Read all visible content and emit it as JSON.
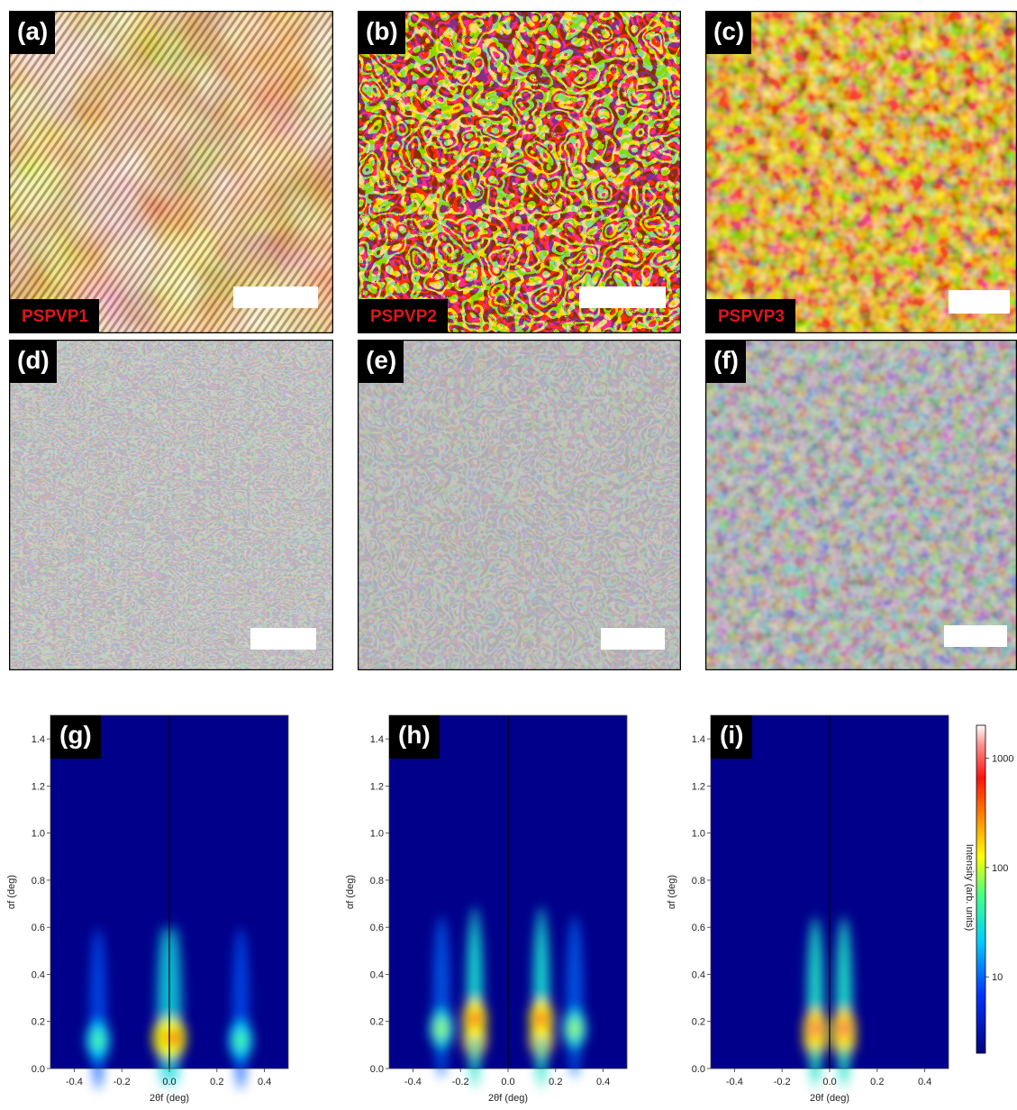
{
  "panels": {
    "a": {
      "label": "(a)",
      "sample": "PSPVP1"
    },
    "b": {
      "label": "(b)",
      "sample": "PSPVP2"
    },
    "c": {
      "label": "(c)",
      "sample": "PSPVP3"
    },
    "d": {
      "label": "(d)"
    },
    "e": {
      "label": "(e)"
    },
    "f": {
      "label": "(f)"
    },
    "g": {
      "label": "(g)"
    },
    "h": {
      "label": "(h)"
    },
    "i": {
      "label": "(i)"
    }
  },
  "colors": {
    "afm_dark": "#3a0a00",
    "afm_mid": "#b85c08",
    "afm_bright": "#fff2b0",
    "sem_bg": "#8a8a8a",
    "sem_dark": "#3f3f3f",
    "sem_light": "#d8d8d8",
    "plot_bg": "#00008a",
    "label_bg": "#000000",
    "sample_text": "#e0141a"
  },
  "chart_data": [
    {
      "type": "heatmap",
      "panel": "(g)",
      "xlabel": "2θf (deg)",
      "ylabel": "αf (deg)",
      "xlim": [
        -0.5,
        0.5
      ],
      "ylim": [
        0.0,
        1.5
      ],
      "xticks": [
        "-0.4",
        "-0.2",
        "0.0",
        "0.2",
        "0.4"
      ],
      "yticks": [
        "0.0",
        "0.2",
        "0.4",
        "0.6",
        "0.8",
        "1.0",
        "1.2",
        "1.4"
      ],
      "features": [
        {
          "x": -0.02,
          "y": 0.13,
          "intensity": 600
        },
        {
          "x": 0.02,
          "y": 0.13,
          "intensity": 600
        },
        {
          "x": -0.3,
          "y": 0.12,
          "intensity": 40
        },
        {
          "x": 0.3,
          "y": 0.12,
          "intensity": 40
        }
      ]
    },
    {
      "type": "heatmap",
      "panel": "(h)",
      "xlabel": "2θf (deg)",
      "ylabel": "αf (deg)",
      "xlim": [
        -0.5,
        0.5
      ],
      "ylim": [
        0.0,
        1.5
      ],
      "xticks": [
        "-0.4",
        "-0.2",
        "0.0",
        "0.2",
        "0.4"
      ],
      "yticks": [
        "0.0",
        "0.2",
        "0.4",
        "0.6",
        "0.8",
        "1.0",
        "1.2",
        "1.4"
      ],
      "features": [
        {
          "x": -0.14,
          "y": 0.13,
          "intensity": 900
        },
        {
          "x": 0.14,
          "y": 0.13,
          "intensity": 900
        },
        {
          "x": -0.14,
          "y": 0.21,
          "intensity": 700
        },
        {
          "x": 0.14,
          "y": 0.21,
          "intensity": 700
        },
        {
          "x": -0.28,
          "y": 0.17,
          "intensity": 60
        },
        {
          "x": 0.28,
          "y": 0.17,
          "intensity": 60
        }
      ]
    },
    {
      "type": "heatmap",
      "panel": "(i)",
      "xlabel": "2θf (deg)",
      "ylabel": "αf (deg)",
      "xlim": [
        -0.5,
        0.5
      ],
      "ylim": [
        0.0,
        1.5
      ],
      "xticks": [
        "-0.4",
        "-0.2",
        "0.0",
        "0.2",
        "0.4"
      ],
      "yticks": [
        "0.0",
        "0.2",
        "0.4",
        "0.6",
        "0.8",
        "1.0",
        "1.2",
        "1.4"
      ],
      "features": [
        {
          "x": -0.06,
          "y": 0.13,
          "intensity": 900
        },
        {
          "x": 0.06,
          "y": 0.13,
          "intensity": 900
        },
        {
          "x": -0.06,
          "y": 0.17,
          "intensity": 900
        },
        {
          "x": 0.06,
          "y": 0.17,
          "intensity": 900
        }
      ]
    }
  ],
  "colorbar": {
    "label": "Intensity (arb. units)",
    "ticks": [
      "1000",
      "100",
      "10"
    ],
    "scale": "log"
  }
}
